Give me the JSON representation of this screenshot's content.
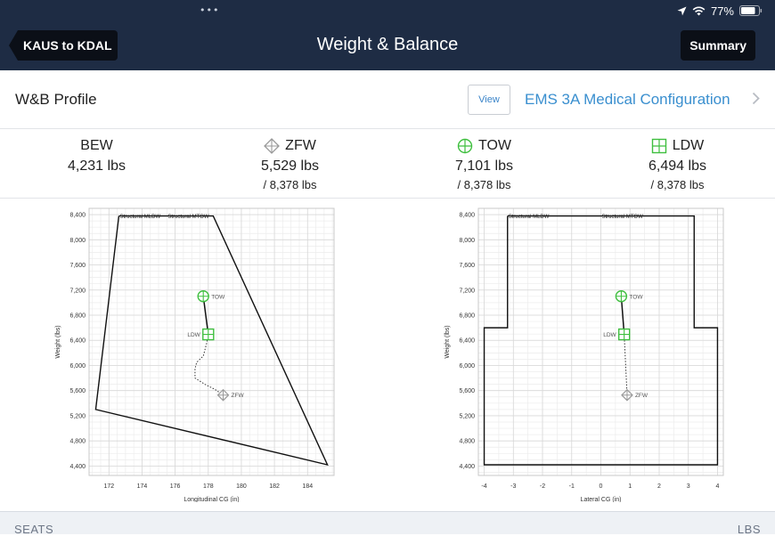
{
  "status_bar": {
    "dots": "•••",
    "battery": "77%"
  },
  "nav": {
    "back_label": "KAUS to KDAL",
    "title": "Weight & Balance",
    "summary_label": "Summary"
  },
  "profile": {
    "title": "W&B Profile",
    "view_label": "View",
    "name": "EMS 3A Medical Configuration"
  },
  "weights": [
    {
      "label": "BEW",
      "value": "4,231 lbs",
      "max": "",
      "icon": "none"
    },
    {
      "label": "ZFW",
      "value": "5,529 lbs",
      "max": "/ 8,378 lbs",
      "icon": "diamond-crosshair-icon"
    },
    {
      "label": "TOW",
      "value": "7,101 lbs",
      "max": "/ 8,378 lbs",
      "icon": "circle-crosshair-icon"
    },
    {
      "label": "LDW",
      "value": "6,494 lbs",
      "max": "/ 8,378 lbs",
      "icon": "square-crosshair-icon"
    }
  ],
  "colors": {
    "navbar": "#1e2c44",
    "button": "#0b0f17",
    "link": "#3a8fcf",
    "marker_green": "#3fbf3f",
    "marker_gray": "#9a9a9a"
  },
  "chart_data": [
    {
      "type": "scatter",
      "title": "",
      "xlabel": "Longitudinal CG (in)",
      "ylabel": "Weight (lbs)",
      "xlim": [
        170.8,
        185.6
      ],
      "ylim": [
        4250,
        8500
      ],
      "xticks": [
        172,
        174,
        176,
        178,
        180,
        182,
        184
      ],
      "yticks": [
        4400,
        4800,
        5200,
        5600,
        6000,
        6400,
        6800,
        7200,
        7600,
        8000,
        8400
      ],
      "grid": true,
      "envelope": [
        [
          172.6,
          8378
        ],
        [
          178.3,
          8378
        ],
        [
          185.2,
          4420
        ],
        [
          171.2,
          5300
        ],
        [
          172.6,
          8378
        ]
      ],
      "envelope_labels": [
        {
          "text": "Structural MLDW",
          "x": 172.6,
          "y": 8378
        },
        {
          "text": "Structural MTOW",
          "x": 175.5,
          "y": 8378
        }
      ],
      "points": [
        {
          "name": "TOW",
          "x": 177.7,
          "y": 7101
        },
        {
          "name": "LDW",
          "x": 178.0,
          "y": 6494
        },
        {
          "name": "ZFW",
          "x": 178.9,
          "y": 5529
        }
      ],
      "solid_path": [
        [
          177.7,
          7101
        ],
        [
          178.0,
          6494
        ]
      ],
      "dotted_path": [
        [
          178.0,
          6494
        ],
        [
          177.9,
          6350
        ],
        [
          177.7,
          6150
        ],
        [
          177.3,
          6050
        ],
        [
          177.2,
          5950
        ],
        [
          177.2,
          5800
        ],
        [
          177.8,
          5700
        ],
        [
          178.4,
          5620
        ],
        [
          178.9,
          5529
        ]
      ]
    },
    {
      "type": "scatter",
      "title": "",
      "xlabel": "Lateral CG (in)",
      "ylabel": "Weight (lbs)",
      "xlim": [
        -4.2,
        4.2
      ],
      "ylim": [
        4250,
        8500
      ],
      "xticks": [
        -4,
        -3,
        -2,
        -1,
        0,
        1,
        2,
        3,
        4
      ],
      "yticks": [
        4400,
        4800,
        5200,
        5600,
        6000,
        6400,
        6800,
        7200,
        7600,
        8000,
        8400
      ],
      "grid": true,
      "envelope": [
        [
          -3.2,
          8378
        ],
        [
          3.2,
          8378
        ],
        [
          3.2,
          6600
        ],
        [
          4.0,
          6600
        ],
        [
          4.0,
          4420
        ],
        [
          -4.0,
          4420
        ],
        [
          -4.0,
          6600
        ],
        [
          -3.2,
          6600
        ],
        [
          -3.2,
          8378
        ]
      ],
      "envelope_labels": [
        {
          "text": "Structural MLDW",
          "x": -3.2,
          "y": 8378
        },
        {
          "text": "Structural MTOW",
          "x": 0.0,
          "y": 8378
        }
      ],
      "points": [
        {
          "name": "TOW",
          "x": 0.7,
          "y": 7101
        },
        {
          "name": "LDW",
          "x": 0.8,
          "y": 6494
        },
        {
          "name": "ZFW",
          "x": 0.9,
          "y": 5529
        }
      ],
      "solid_path": [
        [
          0.7,
          7101
        ],
        [
          0.8,
          6494
        ]
      ],
      "dotted_path": [
        [
          0.8,
          6494
        ],
        [
          0.9,
          5529
        ]
      ]
    }
  ],
  "section": {
    "left": "SEATS",
    "right": "LBS"
  }
}
